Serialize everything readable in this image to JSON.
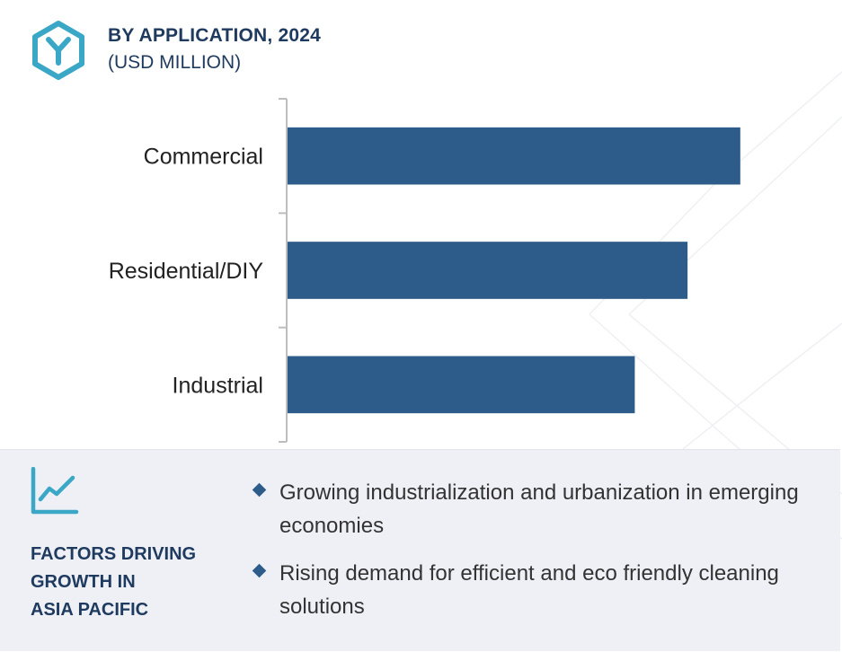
{
  "header": {
    "title": "BY APPLICATION, 2024",
    "subtitle": "(USD MILLION)",
    "logo_icon": "y-hexagon-icon"
  },
  "colors": {
    "bar": "#2d5b8a",
    "title": "#1e3a5f",
    "accent": "#3aa7c7",
    "panel": "#eef0f6"
  },
  "chart_data": {
    "type": "bar",
    "orientation": "horizontal",
    "categories": [
      "Commercial",
      "Residential/DIY",
      "Industrial"
    ],
    "values": [
      8.6,
      7.6,
      6.6
    ],
    "xlim": [
      0,
      10
    ],
    "grid": false,
    "legend": false,
    "value_labels": false
  },
  "factors": {
    "icon": "line-chart-icon",
    "title_lines": [
      "FACTORS DRIVING",
      "GROWTH IN",
      "ASIA PACIFIC"
    ],
    "items": [
      "Growing industrialization and urbanization in emerging economies",
      "Rising demand for efficient and eco friendly cleaning solutions"
    ]
  }
}
